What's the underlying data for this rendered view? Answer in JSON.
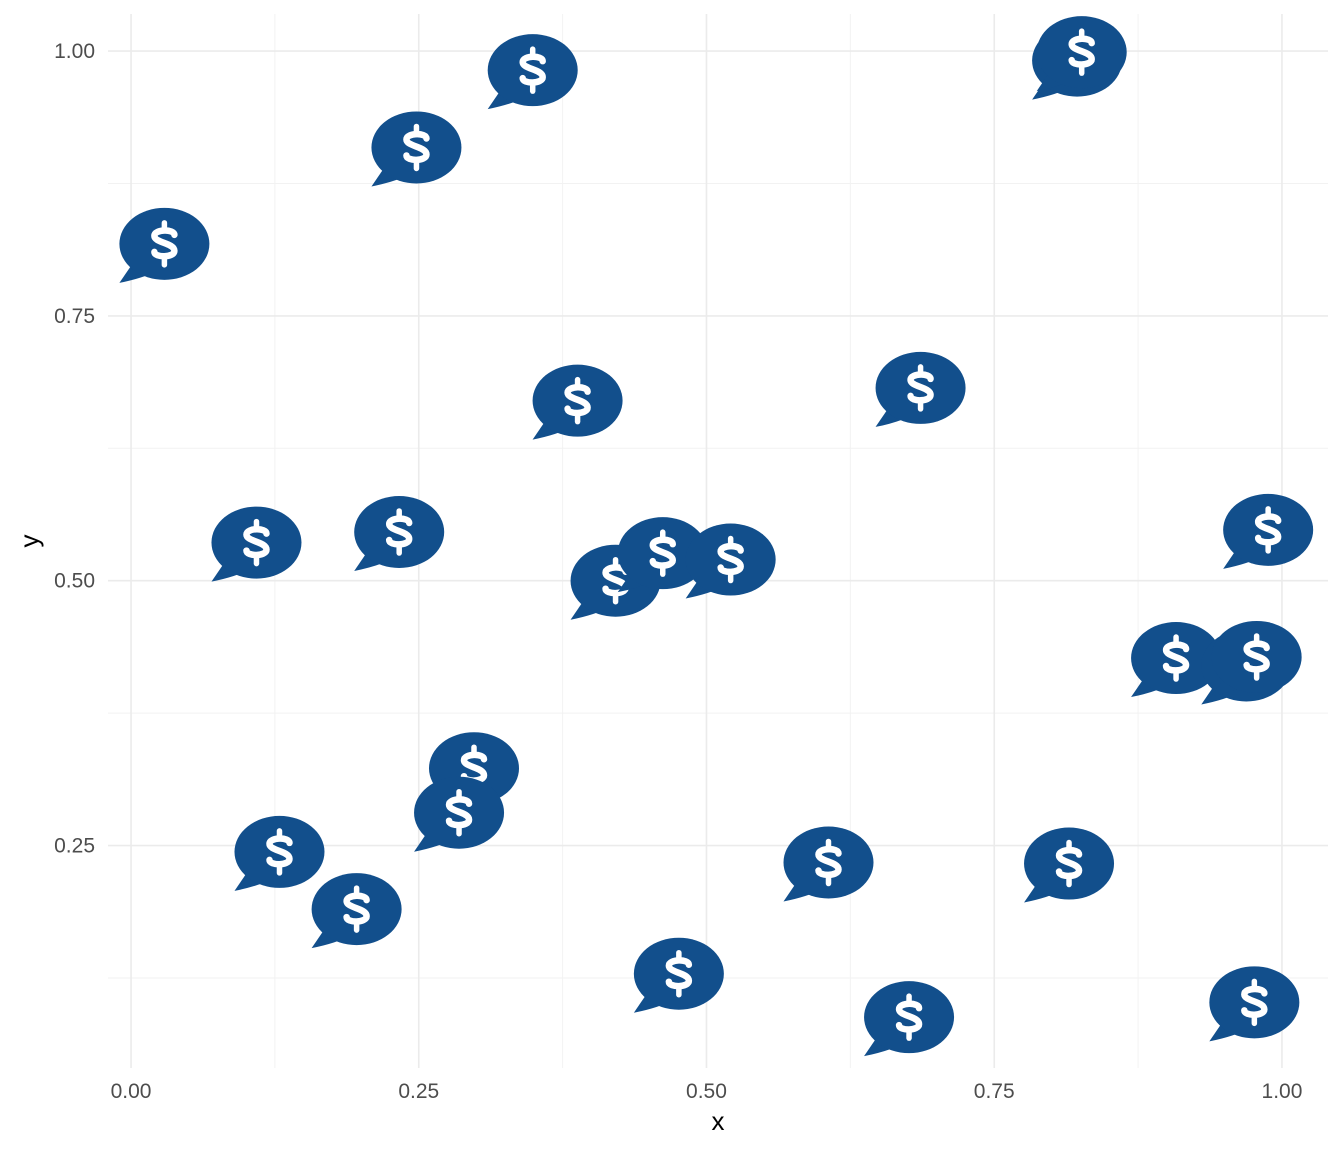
{
  "chart_data": {
    "type": "scatter",
    "title": "",
    "xlabel": "x",
    "ylabel": "y",
    "xlim": [
      -0.02,
      1.04
    ],
    "ylim": [
      0.04,
      1.035
    ],
    "x_ticks": [
      0.0,
      0.25,
      0.5,
      0.75,
      1.0
    ],
    "x_tick_labels": [
      "0.00",
      "0.25",
      "0.50",
      "0.75",
      "1.00"
    ],
    "y_ticks": [
      0.25,
      0.5,
      0.75,
      1.0
    ],
    "y_tick_labels": [
      "0.25",
      "0.50",
      "0.75",
      "1.00"
    ],
    "grid": true,
    "marker": "comment-dollar-icon",
    "marker_color": "#124f8c",
    "glyph_color": "#ffffff",
    "points": [
      {
        "x": 0.029,
        "y": 0.818
      },
      {
        "x": 0.248,
        "y": 0.909
      },
      {
        "x": 0.349,
        "y": 0.982
      },
      {
        "x": 0.822,
        "y": 0.991
      },
      {
        "x": 0.826,
        "y": 0.999
      },
      {
        "x": 0.388,
        "y": 0.67
      },
      {
        "x": 0.686,
        "y": 0.682
      },
      {
        "x": 0.109,
        "y": 0.536
      },
      {
        "x": 0.233,
        "y": 0.546
      },
      {
        "x": 0.421,
        "y": 0.5
      },
      {
        "x": 0.462,
        "y": 0.526
      },
      {
        "x": 0.521,
        "y": 0.52
      },
      {
        "x": 0.988,
        "y": 0.548
      },
      {
        "x": 0.908,
        "y": 0.427
      },
      {
        "x": 0.969,
        "y": 0.42
      },
      {
        "x": 0.978,
        "y": 0.428
      },
      {
        "x": 0.298,
        "y": 0.323
      },
      {
        "x": 0.285,
        "y": 0.281
      },
      {
        "x": 0.129,
        "y": 0.244
      },
      {
        "x": 0.196,
        "y": 0.19
      },
      {
        "x": 0.606,
        "y": 0.234
      },
      {
        "x": 0.815,
        "y": 0.233
      },
      {
        "x": 0.476,
        "y": 0.129
      },
      {
        "x": 0.676,
        "y": 0.088
      },
      {
        "x": 0.976,
        "y": 0.102
      }
    ]
  }
}
